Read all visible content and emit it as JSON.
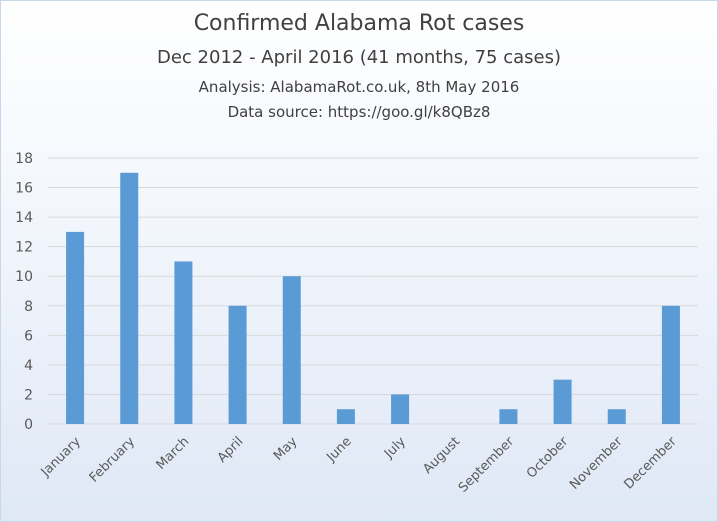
{
  "chart_data": {
    "type": "bar",
    "title": "Confirmed Alabama Rot cases",
    "subtitle": "Dec 2012 - April 2016 (41 months, 75 cases)",
    "analysis_note": "Analysis: AlabamaRot.co.uk, 8th May 2016",
    "source_note": "Data source: https://goo.gl/k8QBz8",
    "categories": [
      "January",
      "February",
      "March",
      "April",
      "May",
      "June",
      "July",
      "August",
      "September",
      "October",
      "November",
      "December"
    ],
    "values": [
      13,
      17,
      11,
      8,
      10,
      1,
      2,
      0,
      1,
      3,
      1,
      8
    ],
    "ylim": [
      0,
      18
    ],
    "yticks": [
      0,
      2,
      4,
      6,
      8,
      10,
      12,
      14,
      16,
      18
    ],
    "grid": true,
    "bar_color": "#5b9bd5",
    "grid_color": "#d9d9d9",
    "xlabel": "",
    "ylabel": ""
  }
}
